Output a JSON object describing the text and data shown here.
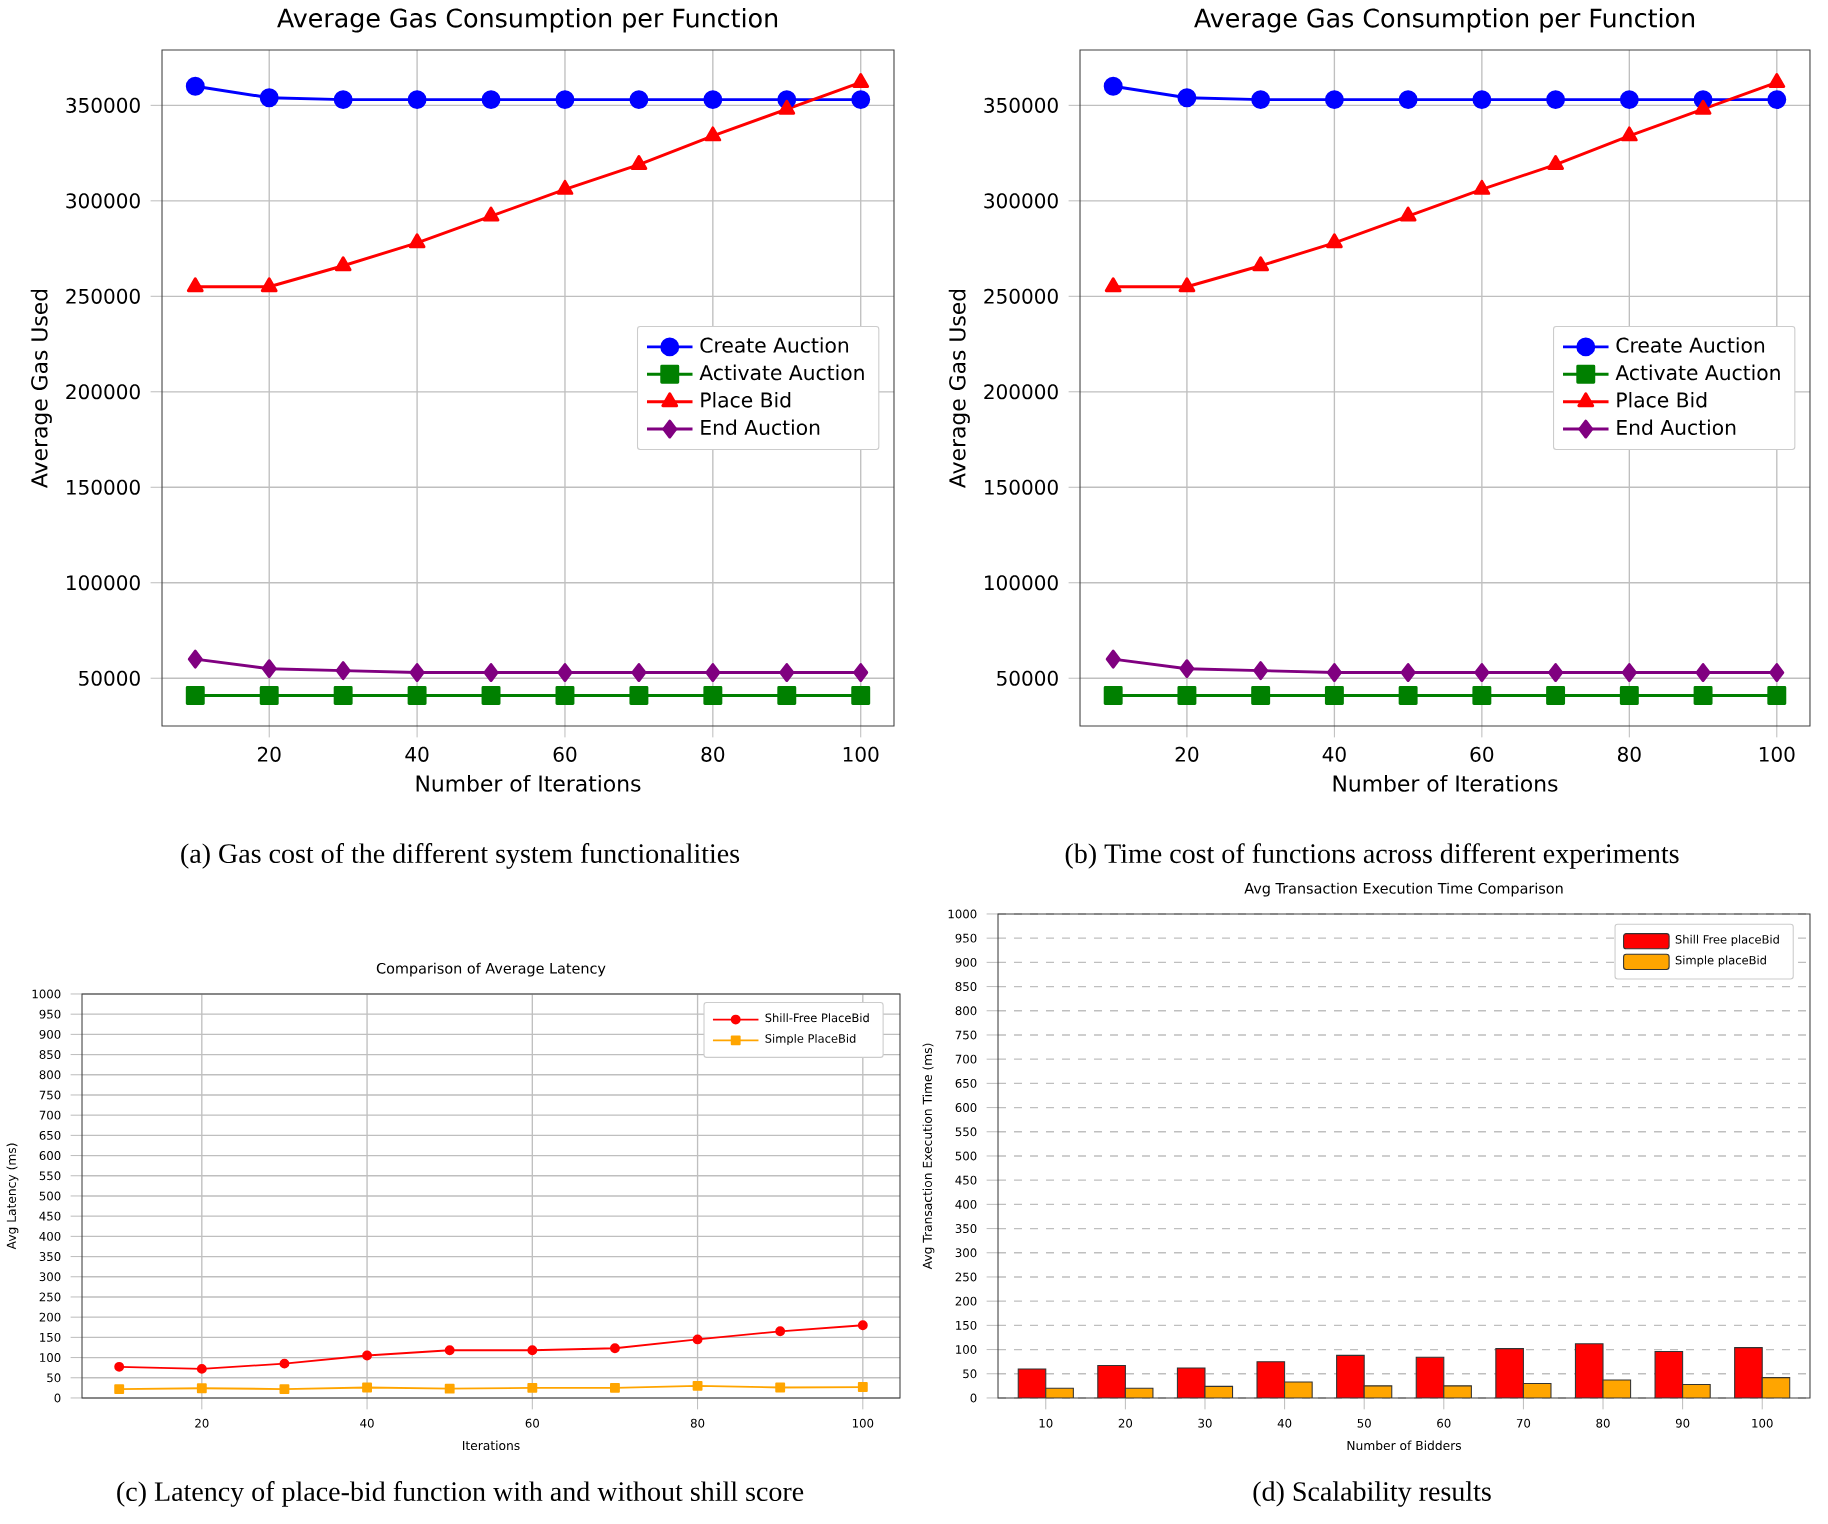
{
  "chart_data": [
    {
      "type": "line",
      "title": "Average Gas Consumption per Function",
      "xlabel": "Number of Iterations",
      "ylabel": "Average Gas Used",
      "x": [
        10,
        20,
        30,
        40,
        50,
        60,
        70,
        80,
        90,
        100
      ],
      "series": [
        {
          "name": "Create Auction",
          "color": "#0000ff",
          "marker": "circle",
          "values": [
            360000,
            354000,
            353000,
            353000,
            353000,
            353000,
            353000,
            353000,
            353000,
            353000
          ]
        },
        {
          "name": "Activate Auction",
          "color": "#008000",
          "marker": "square",
          "values": [
            41000,
            41000,
            41000,
            41000,
            41000,
            41000,
            41000,
            41000,
            41000,
            41000
          ]
        },
        {
          "name": "Place Bid",
          "color": "#ff0000",
          "marker": "triangle",
          "values": [
            255000,
            255000,
            266000,
            278000,
            292000,
            306000,
            319000,
            334000,
            348000,
            362000
          ]
        },
        {
          "name": "End Auction",
          "color": "#800080",
          "marker": "diamond",
          "values": [
            60000,
            55000,
            54000,
            53000,
            53000,
            53000,
            53000,
            53000,
            53000,
            53000
          ]
        }
      ],
      "xlim": [
        5.5,
        104.5
      ],
      "ylim": [
        25000,
        379000
      ],
      "xticks": [
        20,
        40,
        60,
        80,
        100
      ],
      "yticks": [
        50000,
        100000,
        150000,
        200000,
        250000,
        300000,
        350000
      ],
      "grid": true,
      "legend": "center right",
      "annotations": [
        "(a) Gas cost of the different system functionalities"
      ]
    },
    {
      "type": "line",
      "title": "Average Gas Consumption per Function",
      "xlabel": "Number of Iterations",
      "ylabel": "Average Gas Used",
      "x": [
        10,
        20,
        30,
        40,
        50,
        60,
        70,
        80,
        90,
        100
      ],
      "series": [
        {
          "name": "Create Auction",
          "color": "#0000ff",
          "marker": "circle",
          "values": [
            360000,
            354000,
            353000,
            353000,
            353000,
            353000,
            353000,
            353000,
            353000,
            353000
          ]
        },
        {
          "name": "Activate Auction",
          "color": "#008000",
          "marker": "square",
          "values": [
            41000,
            41000,
            41000,
            41000,
            41000,
            41000,
            41000,
            41000,
            41000,
            41000
          ]
        },
        {
          "name": "Place Bid",
          "color": "#ff0000",
          "marker": "triangle",
          "values": [
            255000,
            255000,
            266000,
            278000,
            292000,
            306000,
            319000,
            334000,
            348000,
            362000
          ]
        },
        {
          "name": "End Auction",
          "color": "#800080",
          "marker": "diamond",
          "values": [
            60000,
            55000,
            54000,
            53000,
            53000,
            53000,
            53000,
            53000,
            53000,
            53000
          ]
        }
      ],
      "xlim": [
        5.5,
        104.5
      ],
      "ylim": [
        25000,
        379000
      ],
      "xticks": [
        20,
        40,
        60,
        80,
        100
      ],
      "yticks": [
        50000,
        100000,
        150000,
        200000,
        250000,
        300000,
        350000
      ],
      "grid": true,
      "legend": "center right",
      "annotations": [
        "(b) Time cost of functions across different experiments"
      ]
    },
    {
      "type": "line",
      "title": "Comparison of Average Latency",
      "xlabel": "Iterations",
      "ylabel": "Avg Latency (ms)",
      "x": [
        10,
        20,
        30,
        40,
        50,
        60,
        70,
        80,
        90,
        100
      ],
      "series": [
        {
          "name": "Shill-Free PlaceBid",
          "color": "#ff0000",
          "marker": "circle",
          "values": [
            77,
            72,
            85,
            105,
            118,
            118,
            123,
            145,
            165,
            180
          ]
        },
        {
          "name": "Simple PlaceBid",
          "color": "#ffa500",
          "marker": "square",
          "values": [
            22,
            24,
            22,
            26,
            23,
            25,
            25,
            30,
            26,
            27
          ]
        }
      ],
      "xlim": [
        5.5,
        104.5
      ],
      "ylim": [
        0,
        1000
      ],
      "xticks": [
        20,
        40,
        60,
        80,
        100
      ],
      "yticks": [
        0,
        50,
        100,
        150,
        200,
        250,
        300,
        350,
        400,
        450,
        500,
        550,
        600,
        650,
        700,
        750,
        800,
        850,
        900,
        950,
        1000
      ],
      "grid": true,
      "legend": "top right",
      "annotations": [
        "(c) Latency of place-bid function with and without shill score"
      ]
    },
    {
      "type": "bar",
      "title": "Avg Transaction Execution Time Comparison",
      "xlabel": "Number of Bidders",
      "ylabel": "Avg Transaction Execution Time (ms)",
      "categories": [
        "10",
        "20",
        "30",
        "40",
        "50",
        "60",
        "70",
        "80",
        "90",
        "100"
      ],
      "series": [
        {
          "name": "Shill Free placeBid",
          "color": "#ff0000",
          "values": [
            60,
            67,
            62,
            75,
            88,
            84,
            102,
            112,
            96,
            104
          ]
        },
        {
          "name": "Simple placeBid",
          "color": "#ffa500",
          "values": [
            20,
            20,
            24,
            33,
            25,
            25,
            30,
            37,
            28,
            42
          ]
        }
      ],
      "ylim": [
        0,
        1000
      ],
      "yticks": [
        0,
        50,
        100,
        150,
        200,
        250,
        300,
        350,
        400,
        450,
        500,
        550,
        600,
        650,
        700,
        750,
        800,
        850,
        900,
        950,
        1000
      ],
      "grid": "y",
      "legend": "top right",
      "annotations": [
        "(d) Scalability results"
      ]
    }
  ]
}
